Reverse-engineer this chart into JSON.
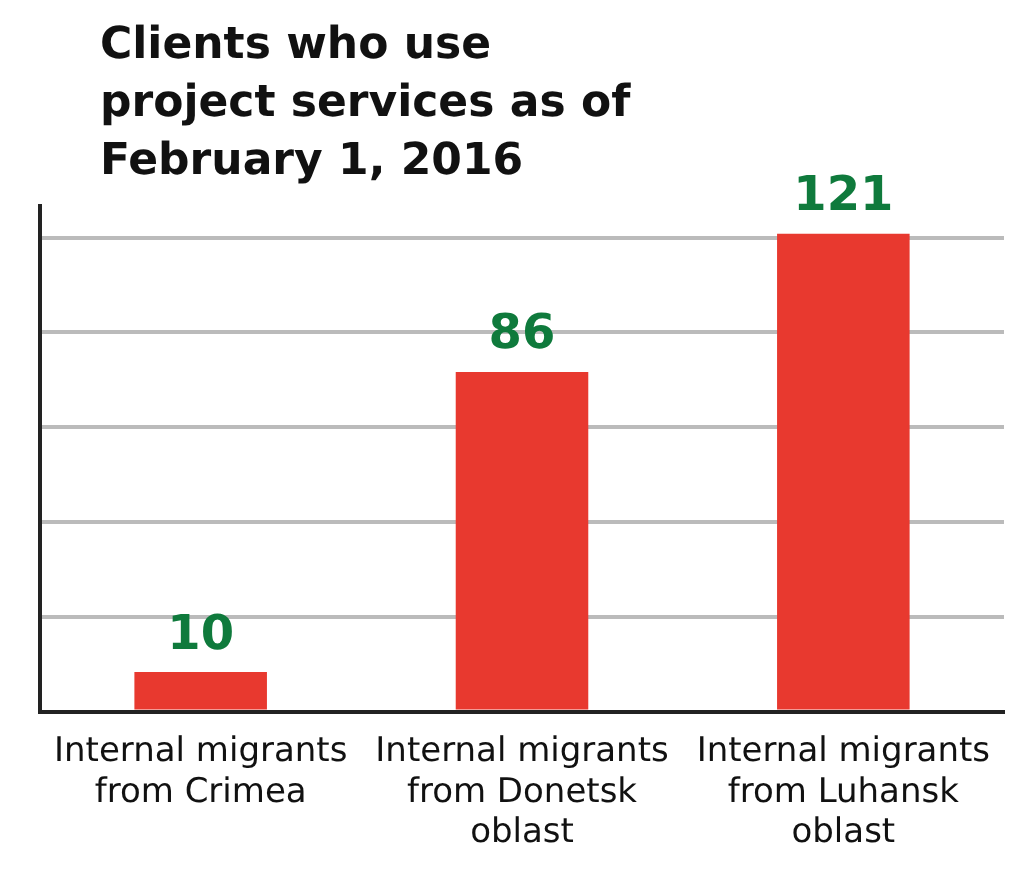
{
  "chart_data": {
    "type": "bar",
    "title": "Clients who use project services as of February 1, 2016",
    "categories": [
      "Internal migrants from Crimea",
      "Internal migrants from Donetsk oblast",
      "Internal migrants from Luhansk oblast"
    ],
    "values": [
      10,
      86,
      121
    ],
    "color": "#e8392f",
    "data_labels": true,
    "ylim": [
      0,
      128
    ],
    "yticks": [
      {
        "value": 0,
        "label": null
      },
      {
        "value": 24,
        "label": null
      },
      {
        "value": 48,
        "label": null
      },
      {
        "value": 72,
        "label": null
      },
      {
        "value": 96,
        "label": null
      },
      {
        "value": 120,
        "label": null
      }
    ],
    "grid": "y",
    "tick_labels": "x",
    "legend": false
  }
}
